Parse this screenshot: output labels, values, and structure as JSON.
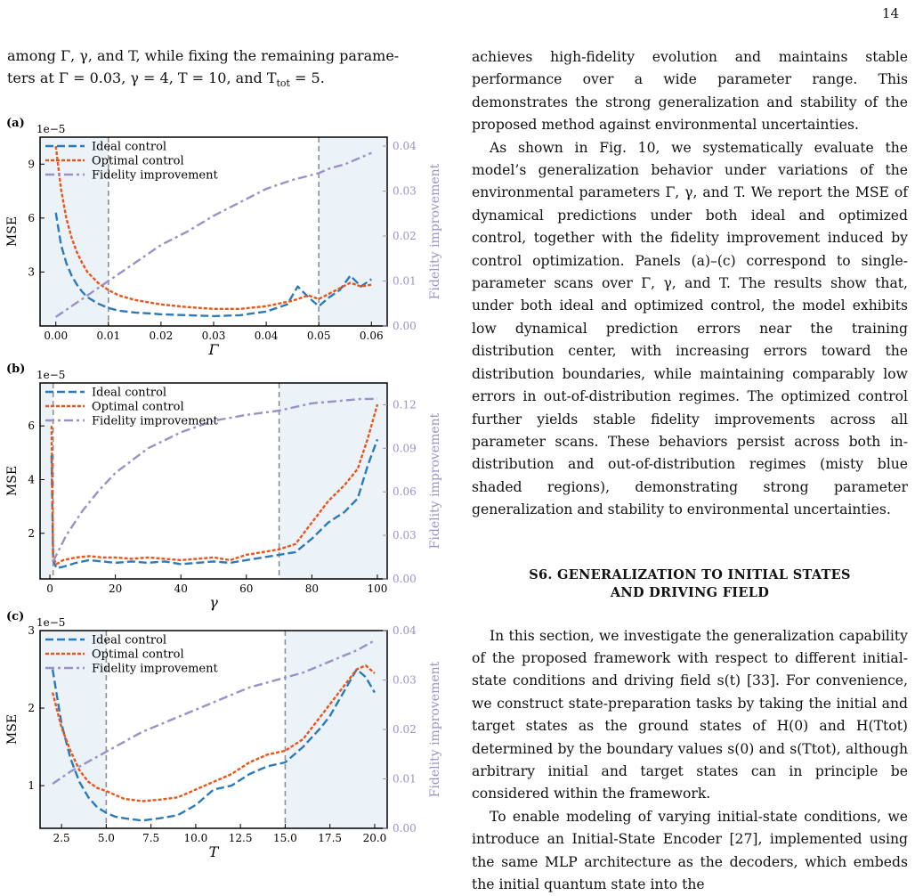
{
  "page": {
    "number": "14"
  },
  "left_text": {
    "line1": "among Γ, γ, and T, while fixing the remaining parame-",
    "line2": "ters at Γ = 0.03, γ = 4, T = 10, and T",
    "line2_sub": "tot",
    "line2_end": " = 5."
  },
  "right_column": {
    "paragraphs": [
      "achieves high-fidelity evolution and maintains stable performance over a wide parameter range. This demonstrates the strong generalization and stability of the proposed method against environmental uncertainties.",
      "As shown in Fig. 10, we systematically evaluate the model’s generalization behavior under variations of the environmental parameters Γ, γ, and T. We report the MSE of dynamical predictions under both ideal and optimized control, together with the fidelity improvement induced by control optimization. Panels (a)–(c) correspond to single-parameter scans over Γ, γ, and T. The results show that, under both ideal and optimized control, the model exhibits low dynamical prediction errors near the training distribution center, with increasing errors toward the distribution boundaries, while maintaining comparably low errors in out-of-distribution regimes. The optimized control further yields stable fidelity improvements across all parameter scans. These behaviors persist across both in-distribution and out-of-distribution regimes (misty blue shaded regions), demonstrating strong parameter generalization and stability to environmental uncertainties."
    ],
    "section_title_line1": "S6. GENERALIZATION TO INITIAL STATES",
    "section_title_line2": "AND DRIVING FIELD",
    "paragraphs_after": [
      "In this section, we investigate the generalization capability of the proposed framework with respect to different initial-state conditions and driving field s(t) [33]. For convenience, we construct state-preparation tasks by taking the initial and target states as the ground states of H(0) and H(Ttot) determined by the boundary values s(0) and s(Ttot), although arbitrary initial and target states can in principle be considered within the framework.",
      "To enable modeling of varying initial-state conditions, we introduce an Initial-State Encoder [27], implemented using the same MLP architecture as the decoders, which embeds the initial quantum state into the"
    ]
  },
  "colors": {
    "ideal": "#2b7bba",
    "optimal": "#e8561c",
    "fidelity": "#9b91c8",
    "shade": "#ebf2f8",
    "vline": "#909090"
  },
  "chart_data": [
    {
      "type": "line",
      "panel_label": "(a)",
      "xlabel": "Γ",
      "ylabel": "MSE",
      "y2label": "Fidelity improvement",
      "scale_label": "1e−5",
      "xlim": [
        -0.003,
        0.063
      ],
      "ylim": [
        0,
        10.5
      ],
      "y2lim": [
        0,
        0.042
      ],
      "xticks": [
        0.0,
        0.01,
        0.02,
        0.03,
        0.04,
        0.05,
        0.06
      ],
      "xtick_labels": [
        "0.00",
        "0.01",
        "0.02",
        "0.03",
        "0.04",
        "0.05",
        "0.06"
      ],
      "yticks": [
        3,
        6,
        9
      ],
      "y2ticks": [
        0,
        0.01,
        0.02,
        0.03,
        0.04
      ],
      "y2tick_labels": [
        "0.00",
        "0.01",
        "0.02",
        "0.03",
        "0.04"
      ],
      "vlines": [
        0.01,
        0.05
      ],
      "shaded": [
        [
          -0.003,
          0.01
        ],
        [
          0.05,
          0.063
        ]
      ],
      "legend": [
        "Ideal control",
        "Optimal control",
        "Fidelity improvement"
      ],
      "series": [
        {
          "name": "Ideal control",
          "axis": "left",
          "style": "dashed",
          "x": [
            0.0,
            0.001,
            0.002,
            0.003,
            0.004,
            0.005,
            0.006,
            0.008,
            0.01,
            0.012,
            0.015,
            0.018,
            0.02,
            0.025,
            0.03,
            0.035,
            0.04,
            0.044,
            0.046,
            0.048,
            0.05,
            0.052,
            0.054,
            0.056,
            0.058,
            0.06
          ],
          "y": [
            6.3,
            4.5,
            3.5,
            2.8,
            2.3,
            1.9,
            1.6,
            1.25,
            1.0,
            0.85,
            0.75,
            0.7,
            0.65,
            0.6,
            0.55,
            0.6,
            0.8,
            1.2,
            2.2,
            1.6,
            1.1,
            1.6,
            2.0,
            2.8,
            2.2,
            2.6
          ]
        },
        {
          "name": "Optimal control",
          "axis": "left",
          "style": "dotted",
          "x": [
            0.0,
            0.001,
            0.002,
            0.003,
            0.004,
            0.005,
            0.006,
            0.008,
            0.01,
            0.012,
            0.015,
            0.018,
            0.02,
            0.025,
            0.03,
            0.035,
            0.04,
            0.045,
            0.048,
            0.05,
            0.052,
            0.054,
            0.056,
            0.058,
            0.06
          ],
          "y": [
            10.0,
            7.6,
            6.0,
            4.9,
            4.1,
            3.5,
            3.0,
            2.4,
            2.0,
            1.7,
            1.45,
            1.3,
            1.2,
            1.05,
            0.95,
            0.95,
            1.1,
            1.4,
            1.7,
            1.5,
            1.8,
            2.1,
            2.4,
            2.2,
            2.3
          ]
        },
        {
          "name": "Fidelity improvement",
          "axis": "right",
          "style": "dashdot",
          "x": [
            0.0,
            0.005,
            0.01,
            0.015,
            0.02,
            0.025,
            0.03,
            0.035,
            0.04,
            0.045,
            0.05,
            0.052,
            0.055,
            0.058,
            0.06
          ],
          "y": [
            0.002,
            0.006,
            0.01,
            0.014,
            0.018,
            0.021,
            0.0245,
            0.0275,
            0.0305,
            0.0325,
            0.034,
            0.035,
            0.036,
            0.0375,
            0.0385
          ]
        }
      ]
    },
    {
      "type": "line",
      "panel_label": "(b)",
      "xlabel": "γ",
      "ylabel": "MSE",
      "y2label": "Fidelity improvement",
      "scale_label": "1e−5",
      "xlim": [
        -3,
        103
      ],
      "ylim": [
        0.3,
        7.6
      ],
      "y2lim": [
        0,
        0.135
      ],
      "xticks": [
        0,
        20,
        40,
        60,
        80,
        100
      ],
      "xtick_labels": [
        "0",
        "20",
        "40",
        "60",
        "80",
        "100"
      ],
      "yticks": [
        2,
        4,
        6
      ],
      "y2ticks": [
        0,
        0.03,
        0.06,
        0.09,
        0.12
      ],
      "y2tick_labels": [
        "0.00",
        "0.03",
        "0.06",
        "0.09",
        "0.12"
      ],
      "vlines": [
        1,
        70
      ],
      "shaded": [
        [
          -3,
          1
        ],
        [
          70,
          103
        ]
      ],
      "legend": [
        "Ideal control",
        "Optimal control",
        "Fidelity improvement"
      ],
      "series": [
        {
          "name": "Ideal control",
          "axis": "left",
          "style": "dashed",
          "x": [
            0.5,
            1,
            2,
            4,
            8,
            12,
            16,
            20,
            25,
            30,
            35,
            40,
            45,
            50,
            55,
            60,
            65,
            70,
            75,
            80,
            85,
            90,
            94,
            97,
            100
          ],
          "y": [
            4.9,
            1.0,
            0.7,
            0.75,
            0.9,
            1.0,
            0.95,
            0.9,
            0.95,
            0.9,
            0.95,
            0.85,
            0.9,
            0.95,
            0.9,
            1.0,
            1.1,
            1.2,
            1.3,
            1.8,
            2.4,
            2.8,
            3.3,
            4.5,
            5.5
          ]
        },
        {
          "name": "Optimal control",
          "axis": "left",
          "style": "dotted",
          "x": [
            0.5,
            1,
            2,
            4,
            8,
            12,
            16,
            20,
            25,
            30,
            35,
            40,
            45,
            50,
            55,
            60,
            65,
            70,
            75,
            80,
            85,
            90,
            94,
            97,
            100
          ],
          "y": [
            6.0,
            1.1,
            0.85,
            1.0,
            1.1,
            1.15,
            1.1,
            1.1,
            1.05,
            1.1,
            1.05,
            1.0,
            1.05,
            1.1,
            1.0,
            1.2,
            1.3,
            1.4,
            1.6,
            2.4,
            3.2,
            3.8,
            4.4,
            5.5,
            6.8
          ]
        },
        {
          "name": "Fidelity improvement",
          "axis": "right",
          "style": "dashdot",
          "x": [
            1,
            5,
            10,
            15,
            20,
            30,
            40,
            50,
            60,
            70,
            80,
            90,
            95,
            100
          ],
          "y": [
            0.012,
            0.03,
            0.047,
            0.061,
            0.073,
            0.09,
            0.101,
            0.109,
            0.113,
            0.116,
            0.121,
            0.123,
            0.124,
            0.124
          ]
        }
      ]
    },
    {
      "type": "line",
      "panel_label": "(c)",
      "xlabel": "T",
      "ylabel": "MSE",
      "y2label": "Fidelity improvement",
      "scale_label": "1e−5",
      "xlim": [
        1.3,
        20.7
      ],
      "ylim": [
        0.45,
        3.0
      ],
      "y2lim": [
        0,
        0.04
      ],
      "xticks": [
        2.5,
        5.0,
        7.5,
        10.0,
        12.5,
        15.0,
        17.5,
        20.0
      ],
      "xtick_labels": [
        "2.5",
        "5.0",
        "7.5",
        "10.0",
        "12.5",
        "15.0",
        "17.5",
        "20.0"
      ],
      "yticks": [
        1,
        2,
        3
      ],
      "y2ticks": [
        0,
        0.01,
        0.02,
        0.03,
        0.04
      ],
      "y2tick_labels": [
        "0.00",
        "0.01",
        "0.02",
        "0.03",
        "0.04"
      ],
      "vlines": [
        5.0,
        15.0
      ],
      "shaded": [
        [
          1.3,
          5.0
        ],
        [
          15.0,
          20.7
        ]
      ],
      "legend": [
        "Ideal control",
        "Optimal control",
        "Fidelity improvement"
      ],
      "series": [
        {
          "name": "Ideal control",
          "axis": "left",
          "style": "dashed",
          "x": [
            2.0,
            2.5,
            3.0,
            3.5,
            4.0,
            4.5,
            5.0,
            5.5,
            6.0,
            7.0,
            8.0,
            9.0,
            10.0,
            11.0,
            12.0,
            13.0,
            14.0,
            15.0,
            16.0,
            17.0,
            17.5,
            18.0,
            18.5,
            19.0,
            19.5,
            20.0
          ],
          "y": [
            2.5,
            1.8,
            1.35,
            1.05,
            0.85,
            0.72,
            0.65,
            0.6,
            0.58,
            0.55,
            0.58,
            0.62,
            0.75,
            0.95,
            1.0,
            1.15,
            1.25,
            1.3,
            1.5,
            1.75,
            1.9,
            2.1,
            2.3,
            2.5,
            2.4,
            2.2
          ]
        },
        {
          "name": "Optimal control",
          "axis": "left",
          "style": "dotted",
          "x": [
            2.0,
            2.5,
            3.0,
            3.5,
            4.0,
            4.5,
            5.0,
            5.5,
            6.0,
            7.0,
            8.0,
            9.0,
            10.0,
            11.0,
            12.0,
            13.0,
            14.0,
            15.0,
            16.0,
            17.0,
            17.5,
            18.0,
            18.5,
            19.0,
            19.5,
            20.0
          ],
          "y": [
            2.2,
            1.75,
            1.45,
            1.2,
            1.05,
            0.97,
            0.93,
            0.88,
            0.83,
            0.8,
            0.82,
            0.85,
            0.95,
            1.05,
            1.15,
            1.3,
            1.4,
            1.45,
            1.6,
            1.9,
            2.05,
            2.2,
            2.35,
            2.5,
            2.55,
            2.45
          ]
        },
        {
          "name": "Fidelity improvement",
          "axis": "right",
          "style": "dashdot",
          "x": [
            2.0,
            3.0,
            4.0,
            5.0,
            6.0,
            7.0,
            8.0,
            9.0,
            10.0,
            11.0,
            12.0,
            13.0,
            14.0,
            15.0,
            16.0,
            17.0,
            18.0,
            19.0,
            20.0
          ],
          "y": [
            0.009,
            0.0115,
            0.0135,
            0.0155,
            0.0175,
            0.0195,
            0.021,
            0.0225,
            0.024,
            0.0255,
            0.027,
            0.0285,
            0.0295,
            0.0305,
            0.0315,
            0.033,
            0.0345,
            0.036,
            0.038
          ]
        }
      ]
    }
  ]
}
